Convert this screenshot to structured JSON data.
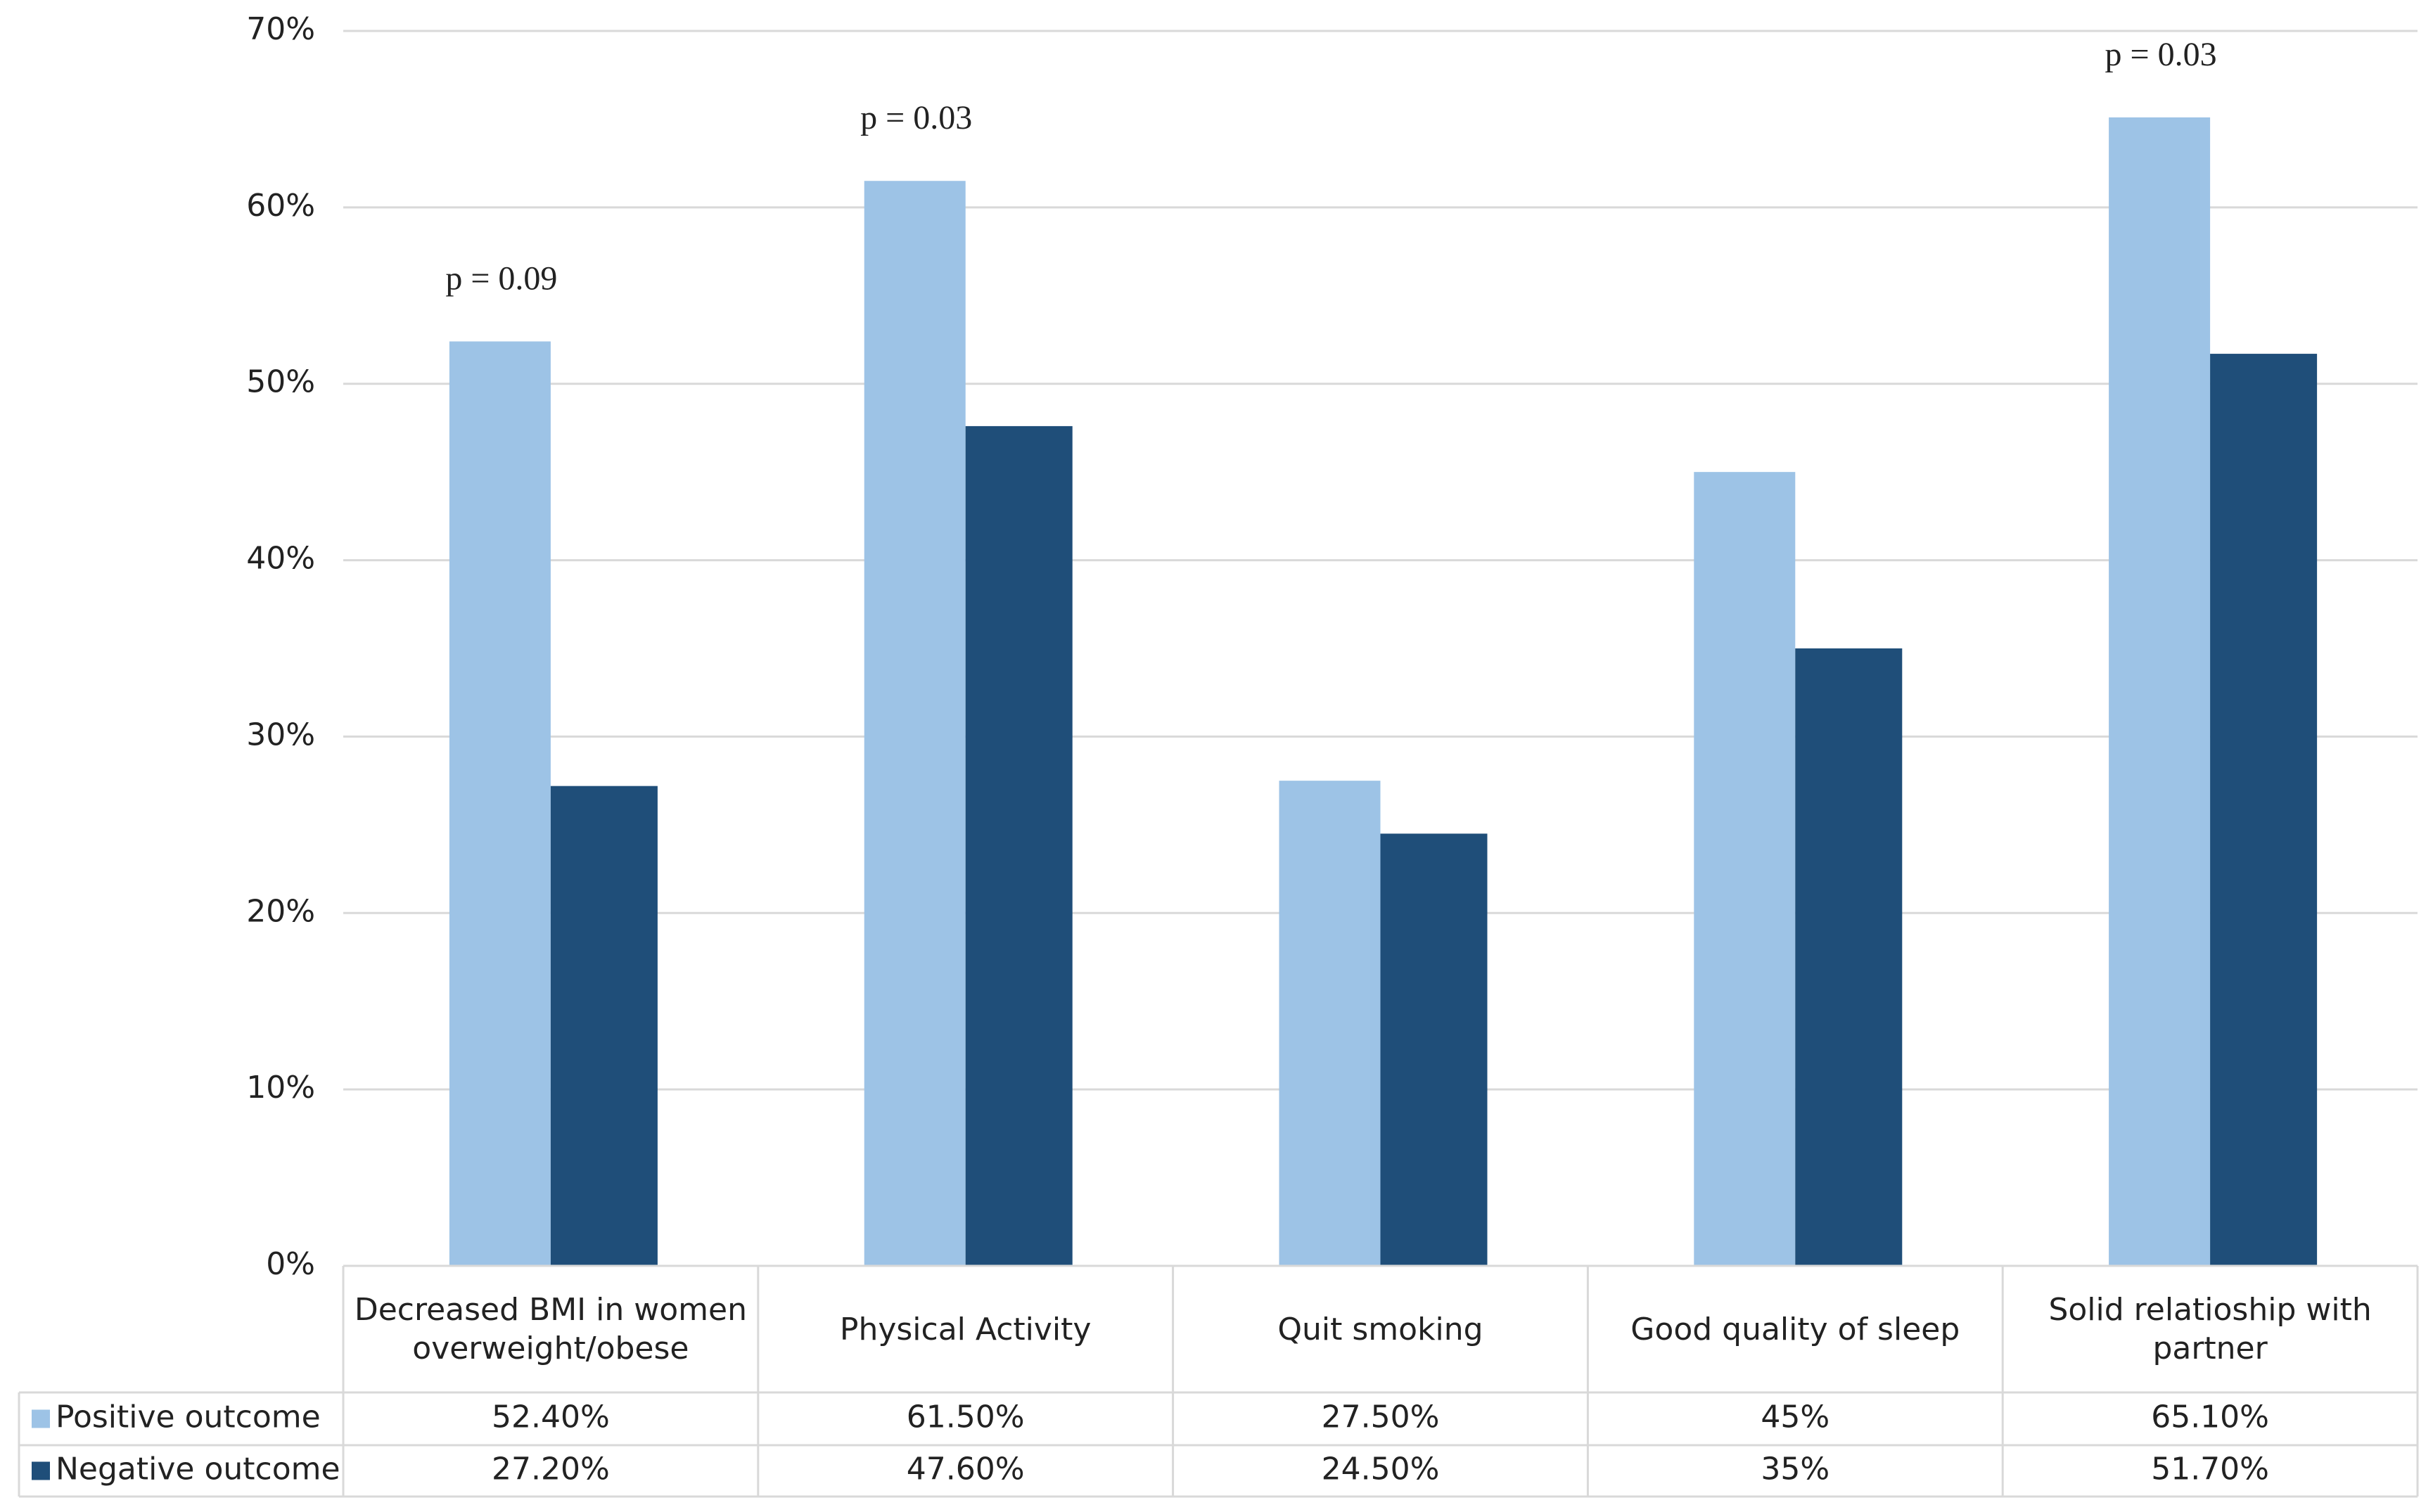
{
  "chart_data": {
    "type": "bar",
    "categories": [
      "Decreased BMI in women overweight/obese",
      "Physical Activity",
      "Quit smoking",
      "Good quality of sleep",
      "Solid relatioship with partner"
    ],
    "series": [
      {
        "name": "Positive outcome",
        "color": "#9dc3e6",
        "values": [
          52.4,
          61.5,
          27.5,
          45,
          65.1
        ],
        "value_labels": [
          "52.40%",
          "61.50%",
          "27.50%",
          "45%",
          "65.10%"
        ]
      },
      {
        "name": "Negative outcome",
        "color": "#1f4e79",
        "values": [
          27.2,
          47.6,
          24.5,
          35,
          51.7
        ],
        "value_labels": [
          "27.20%",
          "47.60%",
          "24.50%",
          "35%",
          "51.70%"
        ]
      }
    ],
    "annotations": [
      "p = 0.09",
      "p = 0.03",
      null,
      null,
      "p = 0.03"
    ],
    "ylim": [
      0,
      70
    ],
    "yticks": [
      {
        "value": 0,
        "label": "0%"
      },
      {
        "value": 10,
        "label": "10%"
      },
      {
        "value": 20,
        "label": "20%"
      },
      {
        "value": 30,
        "label": "30%"
      },
      {
        "value": 40,
        "label": "40%"
      },
      {
        "value": 50,
        "label": "50%"
      },
      {
        "value": 60,
        "label": "60%"
      },
      {
        "value": 70,
        "label": "70%"
      }
    ],
    "grid": true,
    "data_table": true
  }
}
